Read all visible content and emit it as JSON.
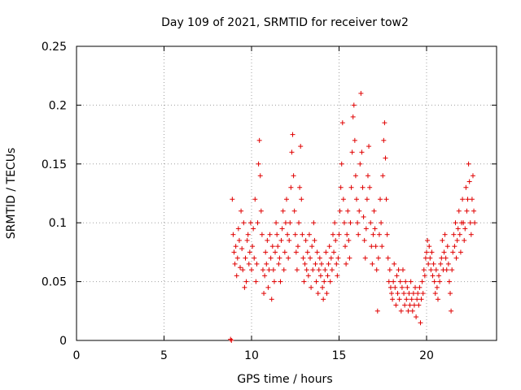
{
  "chart_data": {
    "type": "scatter",
    "title": "Day 109 of 2021, SRMTID for receiver tow2",
    "xlabel": "GPS time / hours",
    "ylabel": "SRMTID / TECUs",
    "xlim": [
      0,
      24
    ],
    "ylim": [
      0,
      0.25
    ],
    "xticks": [
      "0",
      "5",
      "10",
      "15",
      "20"
    ],
    "xtick_values": [
      0,
      5,
      10,
      15,
      20
    ],
    "yticks": [
      "0",
      "0.05",
      "0.1",
      "0.15",
      "0.2",
      "0.25"
    ],
    "ytick_values": [
      0,
      0.05,
      0.1,
      0.15,
      0.2,
      0.25
    ],
    "grid": true,
    "marker": "+",
    "color": "#e00000",
    "series": [
      {
        "name": "SRMTID",
        "points": [
          [
            8.8,
            0.001
          ],
          [
            8.85,
            0.0
          ],
          [
            8.9,
            0.12
          ],
          [
            8.95,
            0.09
          ],
          [
            9.0,
            0.075
          ],
          [
            9.05,
            0.065
          ],
          [
            9.1,
            0.08
          ],
          [
            9.15,
            0.055
          ],
          [
            9.2,
            0.07
          ],
          [
            9.25,
            0.095
          ],
          [
            9.3,
            0.085
          ],
          [
            9.35,
            0.062
          ],
          [
            9.4,
            0.11
          ],
          [
            9.45,
            0.078
          ],
          [
            9.5,
            0.06
          ],
          [
            9.55,
            0.1
          ],
          [
            9.6,
            0.045
          ],
          [
            9.65,
            0.07
          ],
          [
            9.7,
            0.05
          ],
          [
            9.75,
            0.085
          ],
          [
            9.8,
            0.09
          ],
          [
            9.85,
            0.065
          ],
          [
            9.9,
            0.075
          ],
          [
            9.95,
            0.1
          ],
          [
            10.0,
            0.06
          ],
          [
            10.05,
            0.08
          ],
          [
            10.1,
            0.095
          ],
          [
            10.15,
            0.07
          ],
          [
            10.2,
            0.12
          ],
          [
            10.25,
            0.05
          ],
          [
            10.3,
            0.065
          ],
          [
            10.35,
            0.1
          ],
          [
            10.4,
            0.15
          ],
          [
            10.45,
            0.17
          ],
          [
            10.5,
            0.14
          ],
          [
            10.55,
            0.11
          ],
          [
            10.6,
            0.09
          ],
          [
            10.65,
            0.06
          ],
          [
            10.7,
            0.04
          ],
          [
            10.75,
            0.055
          ],
          [
            10.8,
            0.075
          ],
          [
            10.85,
            0.065
          ],
          [
            10.9,
            0.085
          ],
          [
            10.95,
            0.045
          ],
          [
            11.0,
            0.06
          ],
          [
            11.05,
            0.09
          ],
          [
            11.1,
            0.07
          ],
          [
            11.15,
            0.035
          ],
          [
            11.2,
            0.08
          ],
          [
            11.25,
            0.06
          ],
          [
            11.3,
            0.05
          ],
          [
            11.35,
            0.075
          ],
          [
            11.4,
            0.1
          ],
          [
            11.45,
            0.09
          ],
          [
            11.5,
            0.08
          ],
          [
            11.55,
            0.065
          ],
          [
            11.6,
            0.07
          ],
          [
            11.65,
            0.05
          ],
          [
            11.7,
            0.085
          ],
          [
            11.75,
            0.095
          ],
          [
            11.8,
            0.11
          ],
          [
            11.85,
            0.06
          ],
          [
            11.9,
            0.075
          ],
          [
            11.95,
            0.1
          ],
          [
            12.0,
            0.12
          ],
          [
            12.05,
            0.09
          ],
          [
            12.1,
            0.07
          ],
          [
            12.15,
            0.085
          ],
          [
            12.2,
            0.1
          ],
          [
            12.25,
            0.13
          ],
          [
            12.3,
            0.16
          ],
          [
            12.35,
            0.175
          ],
          [
            12.4,
            0.14
          ],
          [
            12.45,
            0.11
          ],
          [
            12.5,
            0.09
          ],
          [
            12.55,
            0.075
          ],
          [
            12.6,
            0.06
          ],
          [
            12.65,
            0.08
          ],
          [
            12.7,
            0.1
          ],
          [
            12.75,
            0.13
          ],
          [
            12.8,
            0.165
          ],
          [
            12.85,
            0.12
          ],
          [
            12.9,
            0.09
          ],
          [
            12.95,
            0.07
          ],
          [
            13.0,
            0.05
          ],
          [
            13.05,
            0.065
          ],
          [
            13.1,
            0.085
          ],
          [
            13.15,
            0.06
          ],
          [
            13.2,
            0.075
          ],
          [
            13.25,
            0.055
          ],
          [
            13.3,
            0.09
          ],
          [
            13.35,
            0.07
          ],
          [
            13.4,
            0.045
          ],
          [
            13.45,
            0.08
          ],
          [
            13.5,
            0.06
          ],
          [
            13.55,
            0.1
          ],
          [
            13.6,
            0.085
          ],
          [
            13.65,
            0.065
          ],
          [
            13.7,
            0.05
          ],
          [
            13.75,
            0.075
          ],
          [
            13.8,
            0.04
          ],
          [
            13.85,
            0.06
          ],
          [
            13.9,
            0.07
          ],
          [
            13.95,
            0.055
          ],
          [
            14.0,
            0.065
          ],
          [
            14.05,
            0.045
          ],
          [
            14.1,
            0.035
          ],
          [
            14.15,
            0.05
          ],
          [
            14.2,
            0.06
          ],
          [
            14.25,
            0.075
          ],
          [
            14.3,
            0.04
          ],
          [
            14.35,
            0.055
          ],
          [
            14.4,
            0.065
          ],
          [
            14.45,
            0.08
          ],
          [
            14.5,
            0.05
          ],
          [
            14.55,
            0.07
          ],
          [
            14.6,
            0.06
          ],
          [
            14.65,
            0.09
          ],
          [
            14.7,
            0.075
          ],
          [
            14.75,
            0.1
          ],
          [
            14.8,
            0.085
          ],
          [
            14.85,
            0.065
          ],
          [
            14.9,
            0.055
          ],
          [
            14.95,
            0.07
          ],
          [
            15.0,
            0.09
          ],
          [
            15.05,
            0.11
          ],
          [
            15.1,
            0.13
          ],
          [
            15.15,
            0.15
          ],
          [
            15.2,
            0.185
          ],
          [
            15.25,
            0.12
          ],
          [
            15.3,
            0.1
          ],
          [
            15.35,
            0.08
          ],
          [
            15.4,
            0.065
          ],
          [
            15.45,
            0.09
          ],
          [
            15.5,
            0.11
          ],
          [
            15.55,
            0.085
          ],
          [
            15.6,
            0.07
          ],
          [
            15.65,
            0.1
          ],
          [
            15.7,
            0.13
          ],
          [
            15.75,
            0.16
          ],
          [
            15.8,
            0.19
          ],
          [
            15.85,
            0.2
          ],
          [
            15.9,
            0.17
          ],
          [
            15.95,
            0.14
          ],
          [
            16.0,
            0.12
          ],
          [
            16.05,
            0.1
          ],
          [
            16.1,
            0.09
          ],
          [
            16.15,
            0.11
          ],
          [
            16.2,
            0.15
          ],
          [
            16.25,
            0.21
          ],
          [
            16.3,
            0.16
          ],
          [
            16.35,
            0.13
          ],
          [
            16.4,
            0.105
          ],
          [
            16.45,
            0.085
          ],
          [
            16.5,
            0.07
          ],
          [
            16.55,
            0.095
          ],
          [
            16.6,
            0.12
          ],
          [
            16.65,
            0.14
          ],
          [
            16.7,
            0.165
          ],
          [
            16.75,
            0.13
          ],
          [
            16.8,
            0.1
          ],
          [
            16.85,
            0.08
          ],
          [
            16.9,
            0.065
          ],
          [
            16.95,
            0.09
          ],
          [
            17.0,
            0.11
          ],
          [
            17.05,
            0.095
          ],
          [
            17.1,
            0.08
          ],
          [
            17.15,
            0.06
          ],
          [
            17.2,
            0.025
          ],
          [
            17.25,
            0.07
          ],
          [
            17.3,
            0.09
          ],
          [
            17.35,
            0.12
          ],
          [
            17.4,
            0.1
          ],
          [
            17.45,
            0.08
          ],
          [
            17.5,
            0.14
          ],
          [
            17.55,
            0.17
          ],
          [
            17.6,
            0.185
          ],
          [
            17.65,
            0.155
          ],
          [
            17.7,
            0.12
          ],
          [
            17.75,
            0.09
          ],
          [
            17.8,
            0.07
          ],
          [
            17.85,
            0.05
          ],
          [
            17.9,
            0.06
          ],
          [
            17.95,
            0.045
          ],
          [
            18.0,
            0.04
          ],
          [
            18.05,
            0.035
          ],
          [
            18.1,
            0.05
          ],
          [
            18.15,
            0.065
          ],
          [
            18.2,
            0.045
          ],
          [
            18.25,
            0.03
          ],
          [
            18.3,
            0.055
          ],
          [
            18.35,
            0.04
          ],
          [
            18.4,
            0.06
          ],
          [
            18.45,
            0.035
          ],
          [
            18.5,
            0.05
          ],
          [
            18.55,
            0.025
          ],
          [
            18.6,
            0.045
          ],
          [
            18.65,
            0.06
          ],
          [
            18.7,
            0.04
          ],
          [
            18.75,
            0.03
          ],
          [
            18.8,
            0.05
          ],
          [
            18.85,
            0.035
          ],
          [
            18.9,
            0.045
          ],
          [
            18.95,
            0.025
          ],
          [
            19.0,
            0.04
          ],
          [
            19.05,
            0.03
          ],
          [
            19.1,
            0.05
          ],
          [
            19.15,
            0.035
          ],
          [
            19.2,
            0.025
          ],
          [
            19.25,
            0.04
          ],
          [
            19.3,
            0.03
          ],
          [
            19.35,
            0.045
          ],
          [
            19.4,
            0.02
          ],
          [
            19.45,
            0.035
          ],
          [
            19.5,
            0.04
          ],
          [
            19.55,
            0.03
          ],
          [
            19.6,
            0.045
          ],
          [
            19.65,
            0.015
          ],
          [
            19.7,
            0.035
          ],
          [
            19.75,
            0.05
          ],
          [
            19.8,
            0.04
          ],
          [
            19.85,
            0.06
          ],
          [
            19.9,
            0.055
          ],
          [
            19.95,
            0.07
          ],
          [
            20.0,
            0.075
          ],
          [
            20.05,
            0.085
          ],
          [
            20.1,
            0.065
          ],
          [
            20.15,
            0.08
          ],
          [
            20.2,
            0.07
          ],
          [
            20.25,
            0.06
          ],
          [
            20.3,
            0.075
          ],
          [
            20.35,
            0.055
          ],
          [
            20.4,
            0.065
          ],
          [
            20.45,
            0.05
          ],
          [
            20.5,
            0.04
          ],
          [
            20.55,
            0.06
          ],
          [
            20.6,
            0.045
          ],
          [
            20.65,
            0.035
          ],
          [
            20.7,
            0.055
          ],
          [
            20.75,
            0.05
          ],
          [
            20.8,
            0.065
          ],
          [
            20.85,
            0.07
          ],
          [
            20.9,
            0.085
          ],
          [
            20.95,
            0.06
          ],
          [
            21.0,
            0.075
          ],
          [
            21.05,
            0.09
          ],
          [
            21.1,
            0.07
          ],
          [
            21.15,
            0.06
          ],
          [
            21.2,
            0.08
          ],
          [
            21.25,
            0.065
          ],
          [
            21.3,
            0.05
          ],
          [
            21.35,
            0.04
          ],
          [
            21.4,
            0.025
          ],
          [
            21.45,
            0.06
          ],
          [
            21.5,
            0.075
          ],
          [
            21.55,
            0.09
          ],
          [
            21.6,
            0.08
          ],
          [
            21.65,
            0.1
          ],
          [
            21.7,
            0.07
          ],
          [
            21.75,
            0.085
          ],
          [
            21.8,
            0.095
          ],
          [
            21.85,
            0.11
          ],
          [
            21.9,
            0.09
          ],
          [
            21.95,
            0.075
          ],
          [
            22.0,
            0.1
          ],
          [
            22.05,
            0.12
          ],
          [
            22.1,
            0.1
          ],
          [
            22.15,
            0.085
          ],
          [
            22.2,
            0.095
          ],
          [
            22.25,
            0.13
          ],
          [
            22.3,
            0.11
          ],
          [
            22.35,
            0.12
          ],
          [
            22.4,
            0.15
          ],
          [
            22.45,
            0.135
          ],
          [
            22.5,
            0.1
          ],
          [
            22.55,
            0.09
          ],
          [
            22.6,
            0.12
          ],
          [
            22.65,
            0.14
          ],
          [
            22.7,
            0.11
          ],
          [
            22.75,
            0.1
          ]
        ]
      }
    ]
  }
}
